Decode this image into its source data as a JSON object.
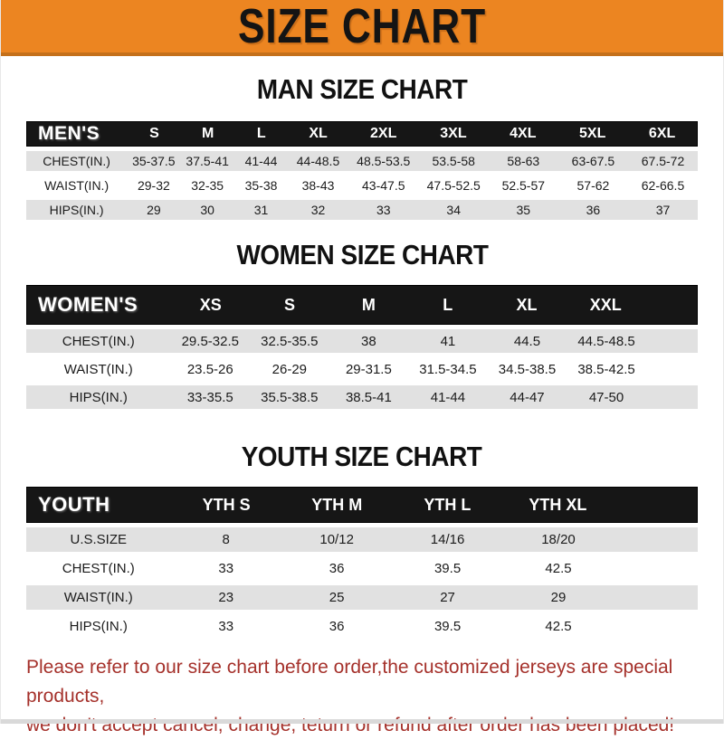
{
  "banner": {
    "title": "SIZE CHART"
  },
  "colors": {
    "banner_orange": "#EC8521",
    "banner_border": "#C4701A",
    "header_black": "#161616",
    "row_gray": "#E1E1E1",
    "note_red": "#A5312B"
  },
  "tables": {
    "men": {
      "heading": "MAN SIZE CHART",
      "header_label": "MEN'S",
      "columns": [
        "S",
        "M",
        "L",
        "XL",
        "2XL",
        "3XL",
        "4XL",
        "5XL",
        "6XL"
      ],
      "rows": [
        {
          "label": "CHEST(IN.)",
          "values": [
            "35-37.5",
            "37.5-41",
            "41-44",
            "44-48.5",
            "48.5-53.5",
            "53.5-58",
            "58-63",
            "63-67.5",
            "67.5-72"
          ]
        },
        {
          "label": "WAIST(IN.)",
          "values": [
            "29-32",
            "32-35",
            "35-38",
            "38-43",
            "43-47.5",
            "47.5-52.5",
            "52.5-57",
            "57-62",
            "62-66.5"
          ]
        },
        {
          "label": "HIPS(IN.)",
          "values": [
            "29",
            "30",
            "31",
            "32",
            "33",
            "34",
            "35",
            "36",
            "37"
          ]
        }
      ],
      "filler": false
    },
    "women": {
      "heading": "WOMEN SIZE CHART",
      "header_label": "WOMEN'S",
      "columns": [
        "XS",
        "S",
        "M",
        "L",
        "XL",
        "XXL"
      ],
      "rows": [
        {
          "label": "CHEST(IN.)",
          "values": [
            "29.5-32.5",
            "32.5-35.5",
            "38",
            "41",
            "44.5",
            "44.5-48.5"
          ]
        },
        {
          "label": "WAIST(IN.)",
          "values": [
            "23.5-26",
            "26-29",
            "29-31.5",
            "31.5-34.5",
            "34.5-38.5",
            "38.5-42.5"
          ]
        },
        {
          "label": "HIPS(IN.)",
          "values": [
            "33-35.5",
            "35.5-38.5",
            "38.5-41",
            "41-44",
            "44-47",
            "47-50"
          ]
        }
      ],
      "filler": true
    },
    "youth": {
      "heading": "YOUTH SIZE CHART",
      "header_label": "YOUTH",
      "columns": [
        "YTH S",
        "YTH M",
        "YTH L",
        "YTH XL"
      ],
      "rows": [
        {
          "label": "U.S.SIZE",
          "values": [
            "8",
            "10/12",
            "14/16",
            "18/20"
          ]
        },
        {
          "label": "CHEST(IN.)",
          "values": [
            "33",
            "36",
            "39.5",
            "42.5"
          ]
        },
        {
          "label": "WAIST(IN.)",
          "values": [
            "23",
            "25",
            "27",
            "29"
          ]
        },
        {
          "label": "HIPS(IN.)",
          "values": [
            "33",
            "36",
            "39.5",
            "42.5"
          ]
        }
      ],
      "filler": true
    }
  },
  "note": {
    "line1": "Please refer to our size chart before order,the customized jerseys are special products,",
    "line2": "we don't accept cancel, change, teturn or refund after order has been placed!"
  }
}
